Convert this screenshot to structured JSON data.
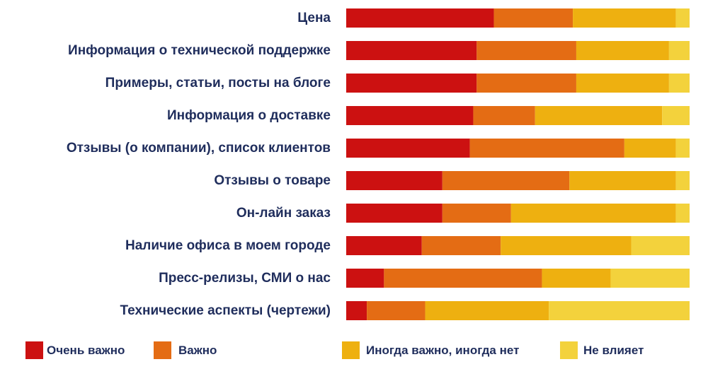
{
  "chart_data": {
    "type": "bar",
    "orientation": "horizontal",
    "stacked": true,
    "percent_stacked": true,
    "title": "",
    "xlabel": "",
    "ylabel": "",
    "xlim": [
      0,
      100
    ],
    "grid": false,
    "legend_position": "bottom",
    "categories": [
      "Цена",
      "Информация о технической поддержке",
      "Примеры, статьи, посты на блоге",
      "Информация о доставке",
      "Отзывы (о компании), список клиентов",
      "Отзывы о товаре",
      "Он-лайн заказ",
      "Наличие офиса в моем городе",
      "Пресс-релизы, СМИ о нас",
      "Технические аспекты (чертежи)"
    ],
    "series": [
      {
        "name": "Очень важно",
        "color": "#cc1111",
        "values": [
          43,
          38,
          38,
          37,
          36,
          28,
          28,
          22,
          11,
          6
        ]
      },
      {
        "name": "Важно",
        "color": "#e46c14",
        "values": [
          23,
          29,
          29,
          18,
          45,
          37,
          20,
          23,
          46,
          17
        ]
      },
      {
        "name": "Иногда важно, иногда нет",
        "color": "#eeb010",
        "values": [
          30,
          27,
          27,
          37,
          15,
          31,
          48,
          38,
          20,
          36
        ]
      },
      {
        "name": "Не влияет",
        "color": "#f3d23c",
        "values": [
          4,
          6,
          6,
          8,
          4,
          4,
          4,
          17,
          23,
          41
        ]
      }
    ]
  }
}
